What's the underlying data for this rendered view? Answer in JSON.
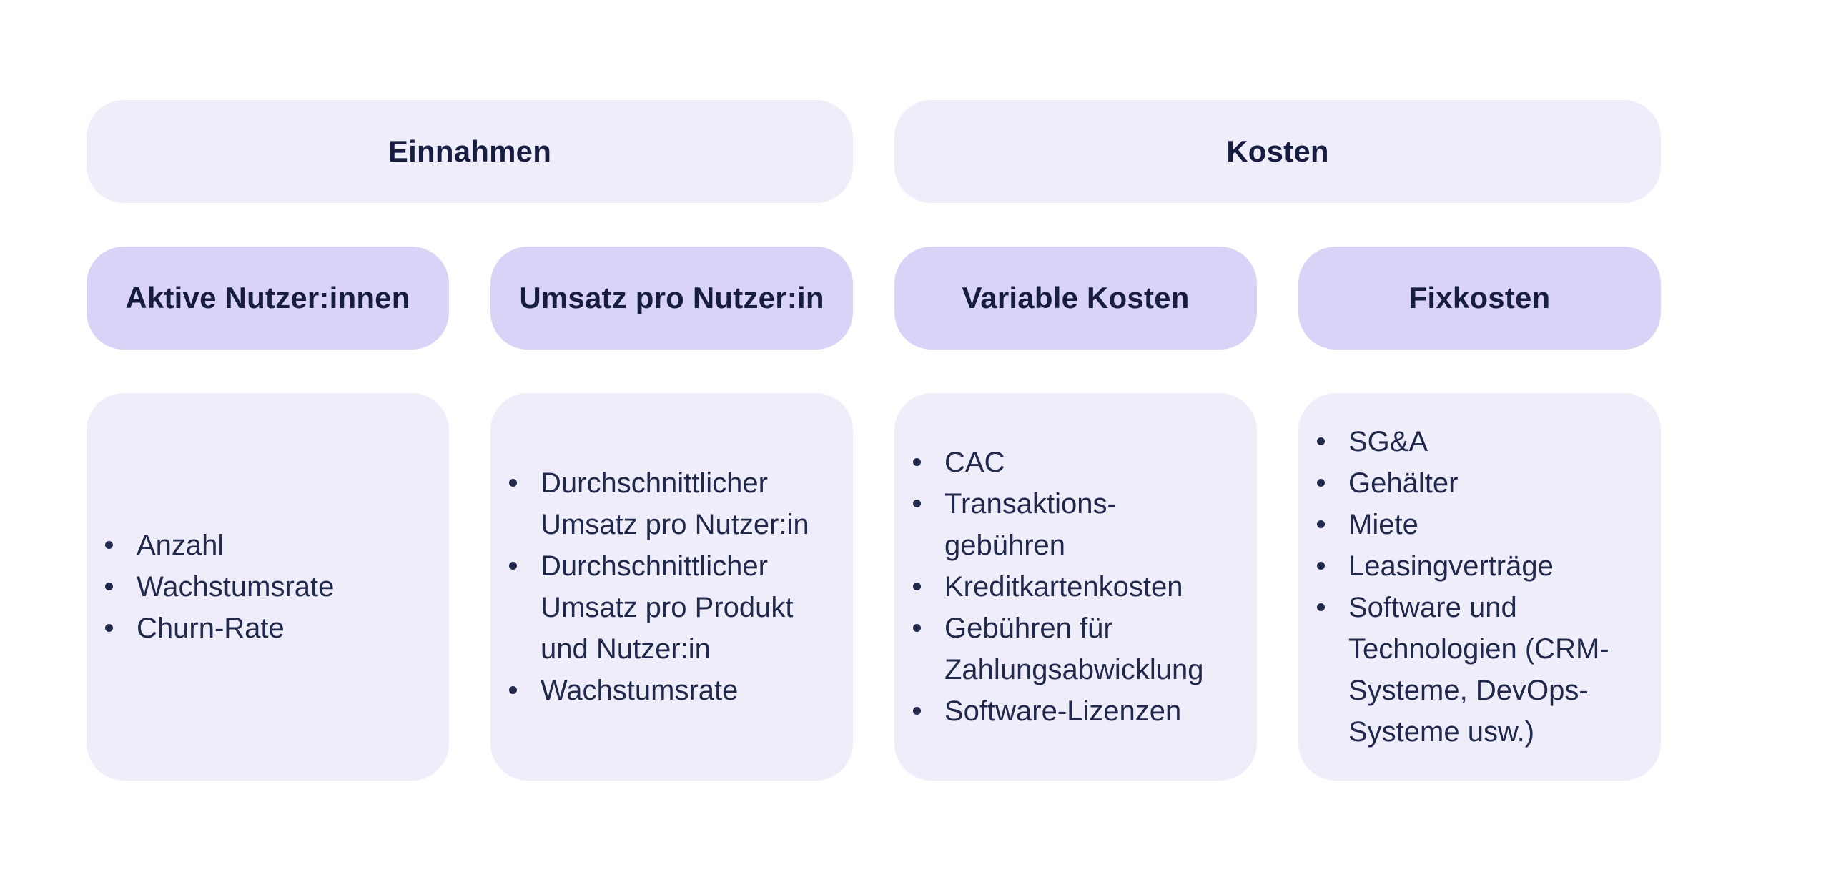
{
  "diagram": {
    "groups": [
      {
        "title": "Einnahmen",
        "columns": [
          {
            "header": "Aktive Nutzer:innen",
            "items": [
              "Anzahl",
              "Wachstumsrate",
              "Churn-Rate"
            ]
          },
          {
            "header": "Umsatz pro Nutzer:in",
            "items": [
              "Durchschnittlicher Umsatz pro Nutzer:in",
              "Durchschnittlicher Umsatz pro Produkt und Nutzer:in",
              "Wachstumsrate"
            ]
          }
        ]
      },
      {
        "title": "Kosten",
        "columns": [
          {
            "header": "Variable Kosten",
            "items": [
              "CAC",
              "Transaktions-gebühren",
              "Kreditkartenkosten",
              "Gebühren für Zahlungsabwicklung",
              "Software-Lizenzen"
            ]
          },
          {
            "header": "Fixkosten",
            "items": [
              "SG&A",
              "Gehälter",
              "Miete",
              "Leasingverträge",
              "Software und Technologien (CRM-Systeme, DevOps-Systeme usw.)"
            ]
          }
        ]
      }
    ],
    "colors": {
      "background": "#FFFFFF",
      "group_header_bg": "#EFEDFA",
      "column_header_bg": "#D9D3F7",
      "card_bg": "#EFEDFA",
      "heading_text": "#161D40",
      "body_text": "#20284B"
    }
  }
}
